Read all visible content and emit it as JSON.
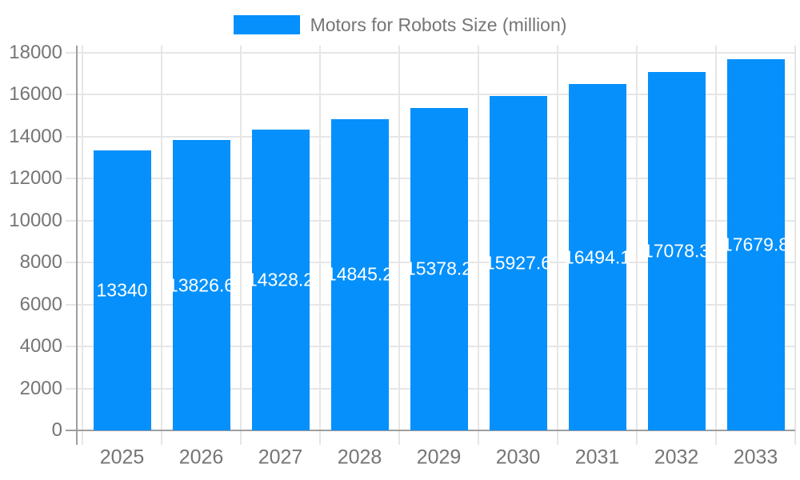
{
  "chart_data": {
    "type": "bar",
    "title": "Motors for Robots Size (million)",
    "legend_position": "top",
    "categories": [
      "2025",
      "2026",
      "2027",
      "2028",
      "2029",
      "2030",
      "2031",
      "2032",
      "2033"
    ],
    "series": [
      {
        "name": "Motors for Robots Size (million)",
        "values": [
          13340,
          13826.6,
          14328.2,
          14845.2,
          15378.2,
          15927.6,
          16494.1,
          17078.3,
          17679.8
        ],
        "value_labels": [
          "13340",
          "13826.6",
          "14328.2",
          "14845.2",
          "15378.2",
          "15927.6",
          "16494.1",
          "17078.3",
          "17679.8"
        ]
      }
    ],
    "xlabel": "",
    "ylabel": "",
    "ylim": [
      0,
      18000
    ],
    "yticks": [
      0,
      2000,
      4000,
      6000,
      8000,
      10000,
      12000,
      14000,
      16000,
      18000
    ],
    "grid": "both",
    "colors": {
      "bar": "#0590fb",
      "axis_text": "#757575",
      "legend_text": "#757575",
      "gridline": "#e6e6e6",
      "axis_line": "#9e9e9e",
      "value_label": "#ffffff",
      "background": "#ffffff"
    }
  }
}
